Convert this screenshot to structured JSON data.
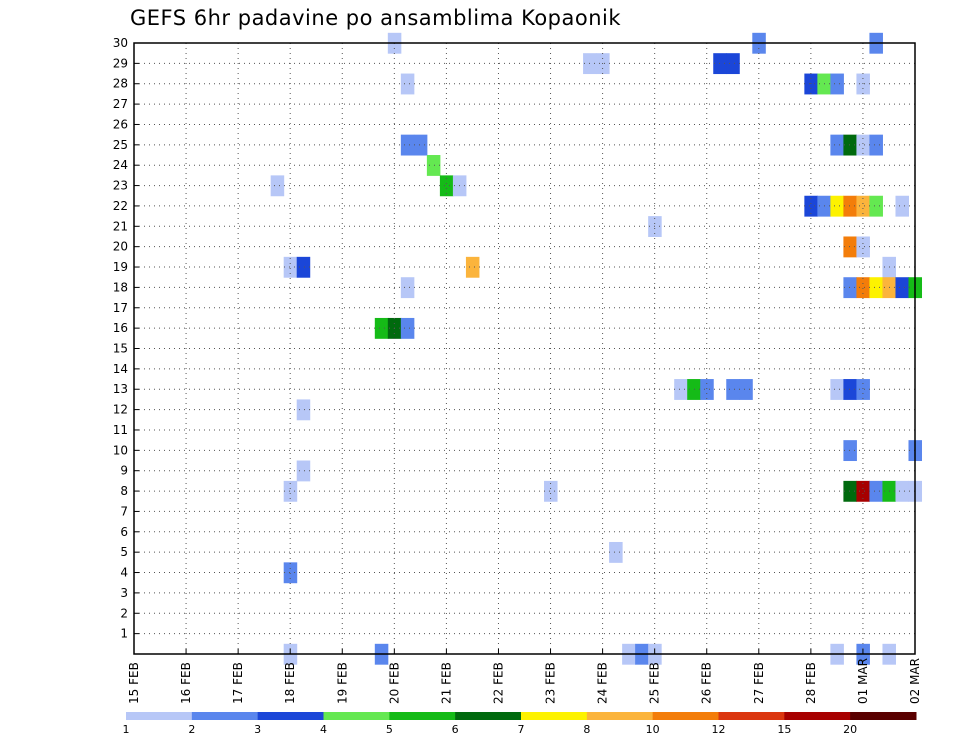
{
  "chart_data": {
    "type": "heatmap",
    "title": "GEFS 6hr padavine po ansamblima Kopaonik",
    "x_tick_labels": [
      "15 FEB",
      "16 FEB",
      "17 FEB",
      "18 FEB",
      "19 FEB",
      "20 FEB",
      "21 FEB",
      "22 FEB",
      "23 FEB",
      "24 FEB",
      "25 FEB",
      "26 FEB",
      "27 FEB",
      "28 FEB",
      "01 MAR",
      "02 MAR"
    ],
    "y_tick_labels": [
      "1",
      "2",
      "3",
      "4",
      "5",
      "6",
      "7",
      "8",
      "9",
      "10",
      "11",
      "12",
      "13",
      "14",
      "15",
      "16",
      "17",
      "18",
      "19",
      "20",
      "21",
      "22",
      "23",
      "24",
      "25",
      "26",
      "27",
      "28",
      "29",
      "30"
    ],
    "x_range_days": [
      0,
      15
    ],
    "y_range": [
      0,
      30
    ],
    "grid": "dotted",
    "color_levels": [
      1,
      2,
      3,
      4,
      5,
      6,
      7,
      8,
      10,
      12,
      15,
      20
    ],
    "colorbar_labels": [
      "1",
      "2",
      "3",
      "4",
      "5",
      "6",
      "7",
      "8",
      "10",
      "12",
      "15",
      "20"
    ],
    "colorbar_colors": [
      "#b7c7f7",
      "#5a86ed",
      "#1b46d8",
      "#64e851",
      "#15bb17",
      "#006a0e",
      "#fdf200",
      "#fbb43c",
      "#f37d0a",
      "#db360f",
      "#a70000",
      "#5a0000"
    ],
    "cells": [
      {
        "t": 5.0,
        "m": 30,
        "c": 0
      },
      {
        "t": 12.0,
        "m": 30,
        "c": 1
      },
      {
        "t": 14.25,
        "m": 30,
        "c": 1
      },
      {
        "t": 8.75,
        "m": 29,
        "c": 0
      },
      {
        "t": 9.0,
        "m": 29,
        "c": 0
      },
      {
        "t": 11.25,
        "m": 29,
        "c": 2
      },
      {
        "t": 11.5,
        "m": 29,
        "c": 2
      },
      {
        "t": 5.25,
        "m": 28,
        "c": 0
      },
      {
        "t": 13.0,
        "m": 28,
        "c": 2
      },
      {
        "t": 13.25,
        "m": 28,
        "c": 3
      },
      {
        "t": 13.5,
        "m": 28,
        "c": 1
      },
      {
        "t": 14.0,
        "m": 28,
        "c": 0
      },
      {
        "t": 5.25,
        "m": 25,
        "c": 1
      },
      {
        "t": 5.5,
        "m": 25,
        "c": 1
      },
      {
        "t": 13.5,
        "m": 25,
        "c": 1
      },
      {
        "t": 13.75,
        "m": 25,
        "c": 5
      },
      {
        "t": 14.0,
        "m": 25,
        "c": 0
      },
      {
        "t": 14.25,
        "m": 25,
        "c": 1
      },
      {
        "t": 5.75,
        "m": 24,
        "c": 3
      },
      {
        "t": 2.75,
        "m": 23,
        "c": 0
      },
      {
        "t": 6.0,
        "m": 23,
        "c": 4
      },
      {
        "t": 6.25,
        "m": 23,
        "c": 0
      },
      {
        "t": 13.0,
        "m": 22,
        "c": 2
      },
      {
        "t": 13.25,
        "m": 22,
        "c": 1
      },
      {
        "t": 13.5,
        "m": 22,
        "c": 6
      },
      {
        "t": 13.75,
        "m": 22,
        "c": 8
      },
      {
        "t": 14.0,
        "m": 22,
        "c": 7
      },
      {
        "t": 14.25,
        "m": 22,
        "c": 3
      },
      {
        "t": 14.75,
        "m": 22,
        "c": 0
      },
      {
        "t": 10.0,
        "m": 21,
        "c": 0
      },
      {
        "t": 13.75,
        "m": 20,
        "c": 8
      },
      {
        "t": 14.0,
        "m": 20,
        "c": 0
      },
      {
        "t": 3.0,
        "m": 19,
        "c": 0
      },
      {
        "t": 3.25,
        "m": 19,
        "c": 2
      },
      {
        "t": 6.5,
        "m": 19,
        "c": 7
      },
      {
        "t": 14.5,
        "m": 19,
        "c": 0
      },
      {
        "t": 5.25,
        "m": 18,
        "c": 0
      },
      {
        "t": 13.75,
        "m": 18,
        "c": 1
      },
      {
        "t": 14.0,
        "m": 18,
        "c": 8
      },
      {
        "t": 14.25,
        "m": 18,
        "c": 6
      },
      {
        "t": 14.5,
        "m": 18,
        "c": 7
      },
      {
        "t": 14.75,
        "m": 18,
        "c": 2
      },
      {
        "t": 15.0,
        "m": 18,
        "c": 4
      },
      {
        "t": 4.75,
        "m": 16,
        "c": 4
      },
      {
        "t": 5.0,
        "m": 16,
        "c": 5
      },
      {
        "t": 5.25,
        "m": 16,
        "c": 1
      },
      {
        "t": 10.5,
        "m": 13,
        "c": 0
      },
      {
        "t": 10.75,
        "m": 13,
        "c": 4
      },
      {
        "t": 11.0,
        "m": 13,
        "c": 1
      },
      {
        "t": 11.5,
        "m": 13,
        "c": 1
      },
      {
        "t": 11.75,
        "m": 13,
        "c": 1
      },
      {
        "t": 13.5,
        "m": 13,
        "c": 0
      },
      {
        "t": 13.75,
        "m": 13,
        "c": 2
      },
      {
        "t": 14.0,
        "m": 13,
        "c": 1
      },
      {
        "t": 3.25,
        "m": 12,
        "c": 0
      },
      {
        "t": 13.75,
        "m": 10,
        "c": 1
      },
      {
        "t": 15.0,
        "m": 10,
        "c": 1
      },
      {
        "t": 3.25,
        "m": 9,
        "c": 0
      },
      {
        "t": 3.0,
        "m": 8,
        "c": 0
      },
      {
        "t": 8.0,
        "m": 8,
        "c": 0
      },
      {
        "t": 13.75,
        "m": 8,
        "c": 5
      },
      {
        "t": 14.0,
        "m": 8,
        "c": 10
      },
      {
        "t": 14.25,
        "m": 8,
        "c": 1
      },
      {
        "t": 14.5,
        "m": 8,
        "c": 4
      },
      {
        "t": 14.75,
        "m": 8,
        "c": 0
      },
      {
        "t": 15.0,
        "m": 8,
        "c": 0
      },
      {
        "t": 9.25,
        "m": 5,
        "c": 0
      },
      {
        "t": 3.0,
        "m": 4,
        "c": 1
      },
      {
        "t": 3.0,
        "m": 0,
        "c": 0
      },
      {
        "t": 4.75,
        "m": 0,
        "c": 1
      },
      {
        "t": 9.5,
        "m": 0,
        "c": 0
      },
      {
        "t": 9.75,
        "m": 0,
        "c": 1
      },
      {
        "t": 10.0,
        "m": 0,
        "c": 0
      },
      {
        "t": 13.5,
        "m": 0,
        "c": 0
      },
      {
        "t": 14.0,
        "m": 0,
        "c": 1
      },
      {
        "t": 14.5,
        "m": 0,
        "c": 0
      }
    ]
  }
}
